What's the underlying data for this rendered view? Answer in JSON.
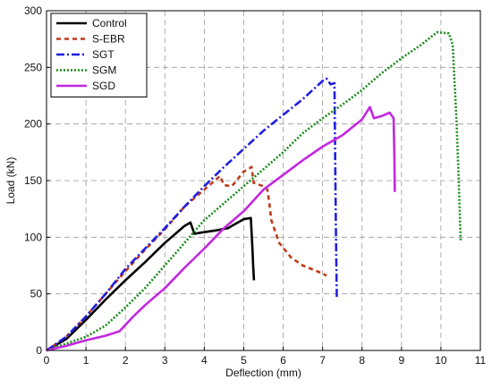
{
  "chart_data": {
    "type": "line",
    "xlabel": "Deflection (mm)",
    "ylabel": "Load (kN)",
    "xlim": [
      0,
      11
    ],
    "ylim": [
      0,
      300
    ],
    "xticks": [
      "0",
      "1",
      "2",
      "3",
      "4",
      "5",
      "6",
      "7",
      "8",
      "9",
      "10",
      "11"
    ],
    "yticks": [
      "0",
      "50",
      "100",
      "150",
      "200",
      "250",
      "300"
    ],
    "grid": true,
    "legend_position": "top-left",
    "series": [
      {
        "name": "Control",
        "color": "#000000",
        "dash": "solid",
        "points": [
          [
            0,
            0
          ],
          [
            0.5,
            10
          ],
          [
            1,
            27
          ],
          [
            1.5,
            45
          ],
          [
            2,
            62
          ],
          [
            2.5,
            78
          ],
          [
            3,
            95
          ],
          [
            3.5,
            110
          ],
          [
            3.65,
            113
          ],
          [
            3.75,
            103
          ],
          [
            3.9,
            104
          ],
          [
            4.3,
            106
          ],
          [
            4.6,
            108
          ],
          [
            5,
            116
          ],
          [
            5.18,
            117
          ],
          [
            5.22,
            90
          ],
          [
            5.24,
            75
          ],
          [
            5.26,
            62
          ]
        ]
      },
      {
        "name": "S-EBR",
        "color": "#c0391b",
        "dash": "5,4",
        "points": [
          [
            0,
            0
          ],
          [
            0.5,
            12
          ],
          [
            1,
            30
          ],
          [
            1.5,
            50
          ],
          [
            2,
            70
          ],
          [
            2.5,
            89
          ],
          [
            3,
            107
          ],
          [
            3.5,
            127
          ],
          [
            4,
            142
          ],
          [
            4.4,
            154
          ],
          [
            4.5,
            146
          ],
          [
            4.7,
            145
          ],
          [
            5,
            158
          ],
          [
            5.2,
            162
          ],
          [
            5.25,
            148
          ],
          [
            5.5,
            145
          ],
          [
            5.6,
            142
          ],
          [
            5.65,
            130
          ],
          [
            5.7,
            115
          ],
          [
            5.9,
            95
          ],
          [
            6.2,
            82
          ],
          [
            6.5,
            75
          ],
          [
            7,
            68
          ],
          [
            7.1,
            66
          ]
        ]
      },
      {
        "name": "SGT",
        "color": "#1f1fe0",
        "dash": "9,3,2,3",
        "points": [
          [
            0,
            0
          ],
          [
            0.5,
            12
          ],
          [
            1,
            30
          ],
          [
            1.5,
            50
          ],
          [
            2,
            72
          ],
          [
            2.5,
            90
          ],
          [
            3,
            108
          ],
          [
            3.5,
            127
          ],
          [
            4,
            145
          ],
          [
            4.5,
            162
          ],
          [
            5,
            178
          ],
          [
            5.5,
            194
          ],
          [
            6,
            208
          ],
          [
            6.5,
            222
          ],
          [
            7,
            238
          ],
          [
            7.1,
            240
          ],
          [
            7.2,
            235
          ],
          [
            7.3,
            236
          ],
          [
            7.32,
            170
          ],
          [
            7.34,
            100
          ],
          [
            7.36,
            47
          ]
        ]
      },
      {
        "name": "SGM",
        "color": "#1c8a1c",
        "dash": "2,2",
        "points": [
          [
            0,
            0
          ],
          [
            0.5,
            6
          ],
          [
            1,
            12
          ],
          [
            1.5,
            22
          ],
          [
            2,
            38
          ],
          [
            2.5,
            55
          ],
          [
            3,
            75
          ],
          [
            3.5,
            95
          ],
          [
            4,
            115
          ],
          [
            4.5,
            130
          ],
          [
            5,
            145
          ],
          [
            5.5,
            160
          ],
          [
            6,
            175
          ],
          [
            6.5,
            192
          ],
          [
            7,
            205
          ],
          [
            7.5,
            217
          ],
          [
            8,
            230
          ],
          [
            8.5,
            245
          ],
          [
            9,
            258
          ],
          [
            9.5,
            270
          ],
          [
            9.9,
            281
          ],
          [
            10.2,
            280
          ],
          [
            10.3,
            270
          ],
          [
            10.4,
            200
          ],
          [
            10.45,
            150
          ],
          [
            10.5,
            97
          ]
        ]
      },
      {
        "name": "SGD",
        "color": "#c227e0",
        "dash": "solid",
        "points": [
          [
            0,
            0
          ],
          [
            0.5,
            4
          ],
          [
            1,
            9
          ],
          [
            1.5,
            13
          ],
          [
            1.85,
            17
          ],
          [
            2.2,
            30
          ],
          [
            2.5,
            40
          ],
          [
            3,
            55
          ],
          [
            3.5,
            73
          ],
          [
            4,
            90
          ],
          [
            4.5,
            108
          ],
          [
            5,
            123
          ],
          [
            5.5,
            142
          ],
          [
            6,
            155
          ],
          [
            6.5,
            168
          ],
          [
            7,
            180
          ],
          [
            7.5,
            190
          ],
          [
            8,
            204
          ],
          [
            8.2,
            215
          ],
          [
            8.3,
            205
          ],
          [
            8.5,
            207
          ],
          [
            8.7,
            210
          ],
          [
            8.8,
            205
          ],
          [
            8.82,
            170
          ],
          [
            8.83,
            140
          ]
        ]
      }
    ]
  }
}
